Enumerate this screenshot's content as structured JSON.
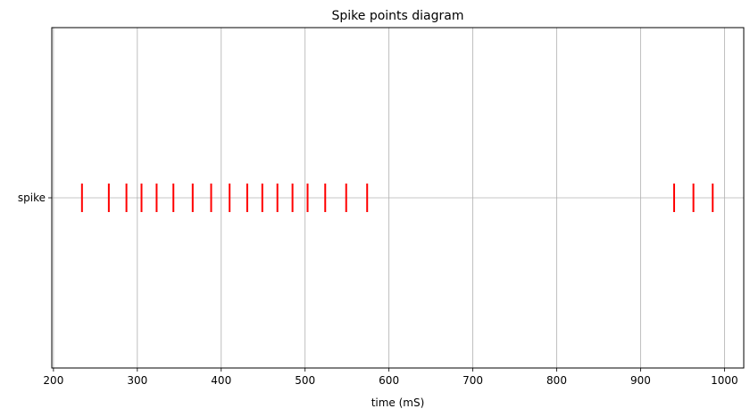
{
  "chart_data": {
    "type": "scatter",
    "marker": "vertical-line",
    "title": "Spike points diagram",
    "xlabel": "time (mS)",
    "ylabel": "",
    "xlim": [
      198,
      1023
    ],
    "xticks": [
      200,
      300,
      400,
      500,
      600,
      700,
      800,
      900,
      1000
    ],
    "ycategories": [
      "spike"
    ],
    "grid": true,
    "series": [
      {
        "color": "#ff0000",
        "x": [
          234,
          266,
          287,
          305,
          323,
          343,
          366,
          388,
          410,
          431,
          449,
          467,
          485,
          503,
          524,
          549,
          574,
          940,
          963,
          986
        ]
      }
    ]
  }
}
